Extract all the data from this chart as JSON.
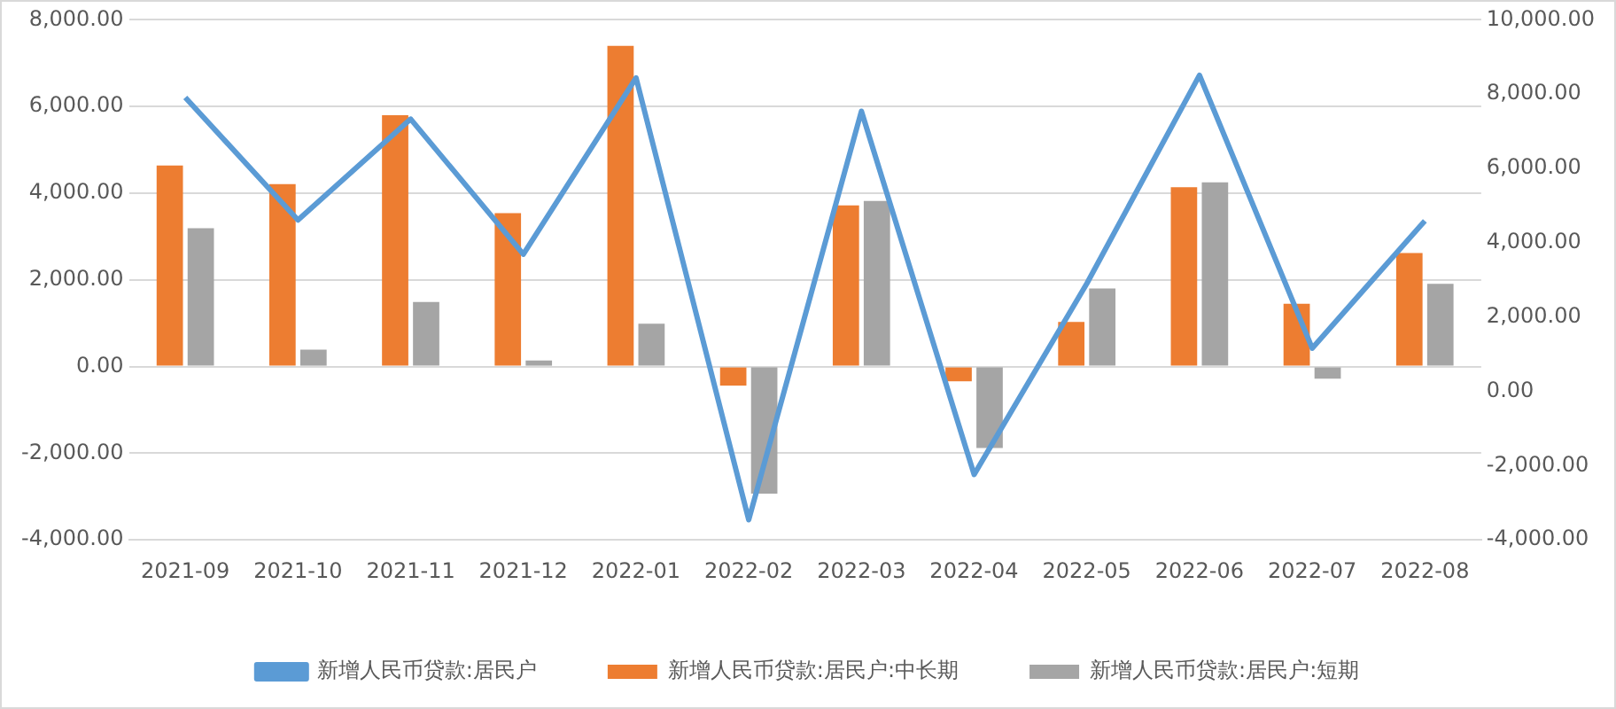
{
  "chart_data": {
    "type": "bar",
    "categories": [
      "2021-09",
      "2021-10",
      "2021-11",
      "2021-12",
      "2022-01",
      "2022-02",
      "2022-03",
      "2022-04",
      "2022-05",
      "2022-06",
      "2022-07",
      "2022-08"
    ],
    "series": [
      {
        "name": "新增人民币贷款:居民户:中长期",
        "color": "#ed7d31",
        "values": [
          4640,
          4210,
          5800,
          3540,
          7400,
          -440,
          3720,
          -340,
          1030,
          4140,
          1450,
          2620
        ]
      },
      {
        "name": "新增人民币贷款:居民户:短期",
        "color": "#a5a5a5",
        "values": [
          3190,
          390,
          1490,
          140,
          990,
          -2930,
          3820,
          -1880,
          1800,
          4250,
          -280,
          1910
        ]
      },
      {
        "name": "新增人民币贷款:居民户",
        "type": "line",
        "axis": "y2",
        "color": "#5b9bd5",
        "values": [
          7910,
          4610,
          7330,
          3690,
          8440,
          -3460,
          7540,
          -2240,
          2900,
          8510,
          1160,
          4590
        ]
      }
    ],
    "ylim": [
      -4000,
      8000
    ],
    "yticks": [
      {
        "value": -4000,
        "label": "-4,000.00"
      },
      {
        "value": -2000,
        "label": "-2,000.00"
      },
      {
        "value": 0,
        "label": "0.00"
      },
      {
        "value": 2000,
        "label": "2,000.00"
      },
      {
        "value": 4000,
        "label": "4,000.00"
      },
      {
        "value": 6000,
        "label": "6,000.00"
      },
      {
        "value": 8000,
        "label": "8,000.00"
      }
    ],
    "y2lim": [
      -4000,
      10000
    ],
    "y2ticks": [
      {
        "value": -4000,
        "label": "-4,000.00"
      },
      {
        "value": -2000,
        "label": "-2,000.00"
      },
      {
        "value": 0,
        "label": "0.00"
      },
      {
        "value": 2000,
        "label": "2,000.00"
      },
      {
        "value": 4000,
        "label": "4,000.00"
      },
      {
        "value": 6000,
        "label": "6,000.00"
      },
      {
        "value": 8000,
        "label": "8,000.00"
      },
      {
        "value": 10000,
        "label": "10,000.00"
      }
    ],
    "grid": "y",
    "legend": "bottom",
    "marker": "none",
    "line_style": "solid"
  }
}
